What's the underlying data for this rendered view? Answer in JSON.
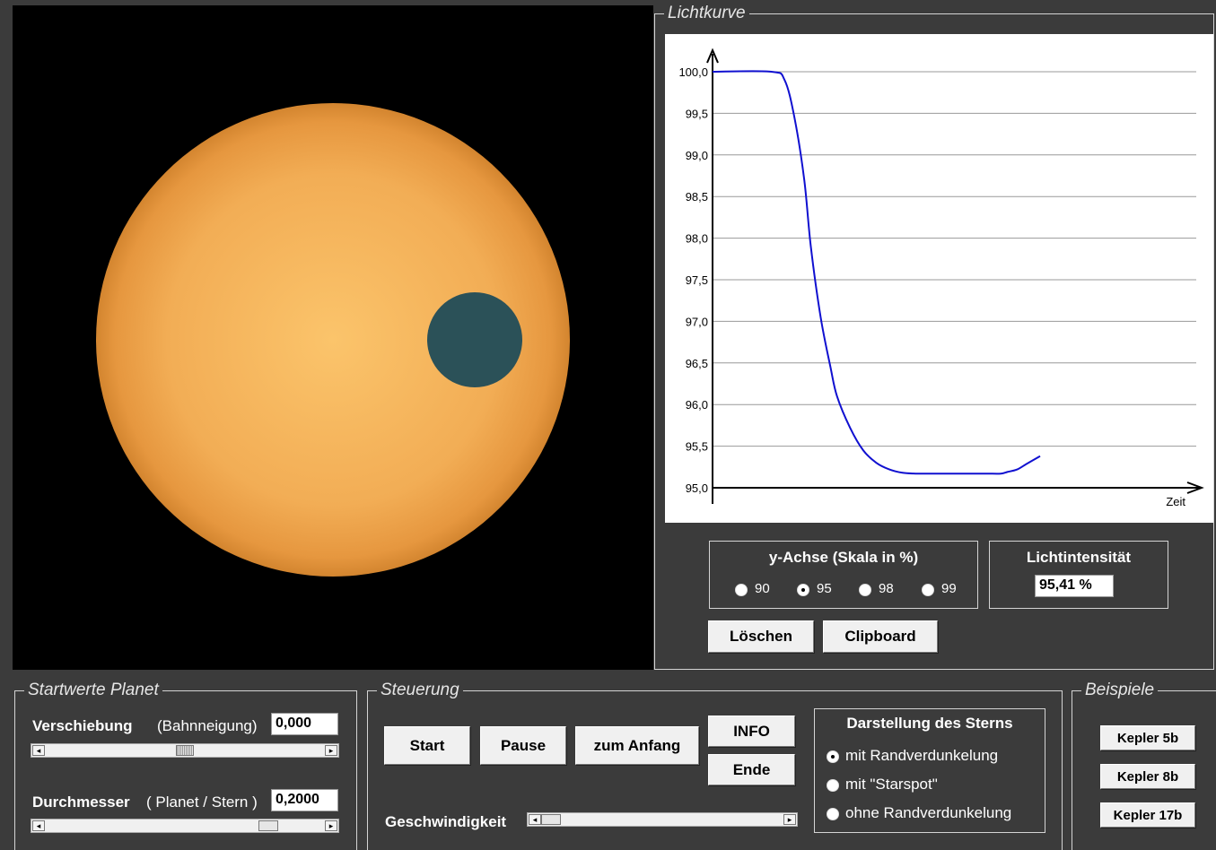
{
  "lightcurve": {
    "title": "Lichtkurve",
    "xlabel": "Zeit",
    "yticks": [
      "100,0",
      "99,5",
      "99,0",
      "98,5",
      "98,0",
      "97,5",
      "97,0",
      "96,5",
      "96,0",
      "95,5",
      "95,0"
    ]
  },
  "chart_data": {
    "type": "line",
    "title": "Lichtkurve",
    "xlabel": "Zeit",
    "ylabel": "",
    "ylim": [
      95.0,
      100.0
    ],
    "grid": true,
    "series": [
      {
        "x": [
          0,
          0.18,
          0.22,
          0.25,
          0.28,
          0.3,
          0.33,
          0.36,
          0.38,
          0.42,
          0.46,
          0.5,
          0.54,
          0.58,
          0.62,
          0.66,
          0.7,
          0.75,
          0.8,
          0.84,
          0.88,
          0.9,
          0.93,
          0.96,
          1.0
        ],
        "values": [
          100.0,
          100.0,
          99.9,
          99.45,
          98.7,
          97.9,
          97.05,
          96.45,
          96.1,
          95.72,
          95.45,
          95.3,
          95.22,
          95.18,
          95.17,
          95.17,
          95.17,
          95.17,
          95.17,
          95.17,
          95.17,
          95.19,
          95.22,
          95.29,
          95.38
        ]
      }
    ]
  },
  "yaxis_group": {
    "title": "y-Achse (Skala in %)",
    "options": [
      {
        "label": "90",
        "selected": false
      },
      {
        "label": "95",
        "selected": true
      },
      {
        "label": "98",
        "selected": false
      },
      {
        "label": "99",
        "selected": false
      }
    ]
  },
  "intensity": {
    "title": "Lichtintensität",
    "value": "95,41 %"
  },
  "buttons": {
    "loeschen": "Löschen",
    "clipboard": "Clipboard"
  },
  "startwerte": {
    "title": "Startwerte Planet",
    "verschiebung_label": "Verschiebung",
    "verschiebung_hint": "(Bahnneigung)",
    "verschiebung_value": "0,000",
    "verschiebung_slider": 0.5,
    "durchmesser_label": "Durchmesser",
    "durchmesser_hint": "( Planet / Stern )",
    "durchmesser_value": "0,2000",
    "durchmesser_slider": 0.82
  },
  "steuerung": {
    "title": "Steuerung",
    "start": "Start",
    "pause": "Pause",
    "zum_anfang": "zum Anfang",
    "info": "INFO",
    "ende": "Ende",
    "geschwindigkeit_label": "Geschwindigkeit",
    "geschwindigkeit_slider": 0.0
  },
  "darstellung": {
    "title": "Darstellung des Sterns",
    "options": [
      {
        "label": "mit Randverdunkelung",
        "selected": true
      },
      {
        "label": "mit \"Starspot\"",
        "selected": false
      },
      {
        "label": "ohne Randverdunkelung",
        "selected": false
      }
    ]
  },
  "beispiele": {
    "title": "Beispiele",
    "items": [
      "Kepler 5b",
      "Kepler 8b",
      "Kepler 17b"
    ]
  },
  "colors": {
    "star": "#f5b055",
    "planet": "#2b5158",
    "curve": "#1010d0"
  }
}
